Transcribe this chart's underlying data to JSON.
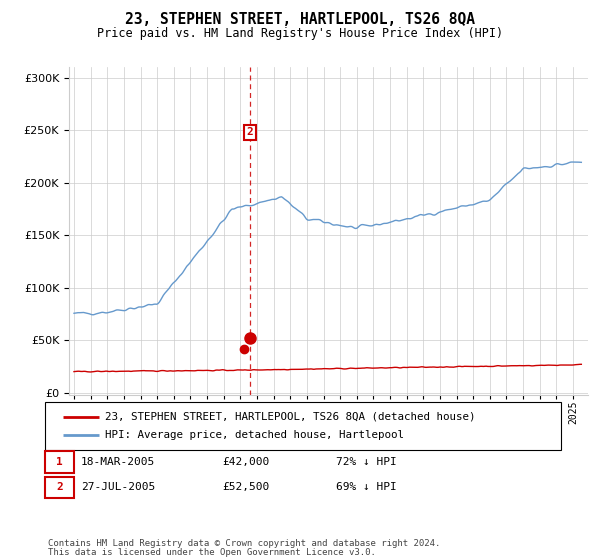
{
  "title": "23, STEPHEN STREET, HARTLEPOOL, TS26 8QA",
  "subtitle": "Price paid vs. HM Land Registry's House Price Index (HPI)",
  "legend_line1": "23, STEPHEN STREET, HARTLEPOOL, TS26 8QA (detached house)",
  "legend_line2": "HPI: Average price, detached house, Hartlepool",
  "transaction1_label": "1",
  "transaction1_date": "18-MAR-2005",
  "transaction1_price": "£42,000",
  "transaction1_hpi": "72% ↓ HPI",
  "transaction1_year": 2005.21,
  "transaction1_price_val": 42000,
  "transaction2_label": "2",
  "transaction2_date": "27-JUL-2005",
  "transaction2_price": "£52,500",
  "transaction2_hpi": "69% ↓ HPI",
  "transaction2_year": 2005.57,
  "transaction2_price_val": 52500,
  "footer1": "Contains HM Land Registry data © Crown copyright and database right 2024.",
  "footer2": "This data is licensed under the Open Government Licence v3.0.",
  "red_line_color": "#cc0000",
  "blue_line_color": "#6699cc",
  "ylim_max": 310000,
  "ylim_min": -2000,
  "xmin": 1994.7,
  "xmax": 2025.9
}
